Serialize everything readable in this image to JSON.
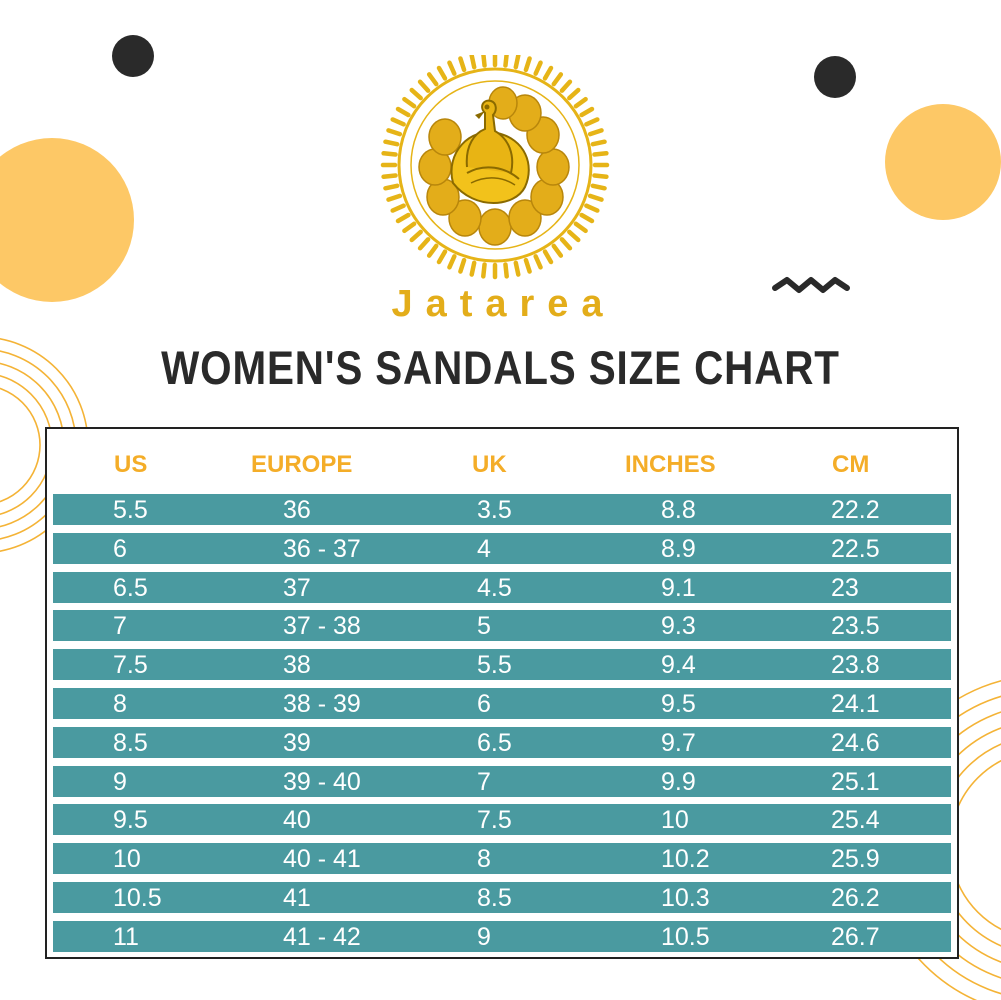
{
  "brand": {
    "name": "Jatarea",
    "color": "#e3ad1a"
  },
  "title": "WOMEN'S SANDALS SIZE CHART",
  "colors": {
    "row_bg": "#4a9aa0",
    "header_text": "#f4ad28",
    "title_text": "#2a2a2a",
    "decor_yellow": "#fdc866",
    "decor_dark": "#2a2a2a"
  },
  "icons": {
    "logo": "peacock-sun-emblem-icon"
  },
  "table": {
    "headers": [
      "US",
      "EUROPE",
      "UK",
      "INCHES",
      "CM"
    ],
    "rows": [
      [
        "5.5",
        "36",
        "3.5",
        "8.8",
        "22.2"
      ],
      [
        "6",
        "36 - 37",
        "4",
        "8.9",
        "22.5"
      ],
      [
        "6.5",
        "37",
        "4.5",
        "9.1",
        "23"
      ],
      [
        "7",
        "37 - 38",
        "5",
        "9.3",
        "23.5"
      ],
      [
        "7.5",
        "38",
        "5.5",
        "9.4",
        "23.8"
      ],
      [
        "8",
        "38 - 39",
        "6",
        "9.5",
        "24.1"
      ],
      [
        "8.5",
        "39",
        "6.5",
        "9.7",
        "24.6"
      ],
      [
        "9",
        "39 - 40",
        "7",
        "9.9",
        "25.1"
      ],
      [
        "9.5",
        "40",
        "7.5",
        "10",
        "25.4"
      ],
      [
        "10",
        "40 - 41",
        "8",
        "10.2",
        "25.9"
      ],
      [
        "10.5",
        "41",
        "8.5",
        "10.3",
        "26.2"
      ],
      [
        "11",
        "41 - 42",
        "9",
        "10.5",
        "26.7"
      ]
    ]
  }
}
